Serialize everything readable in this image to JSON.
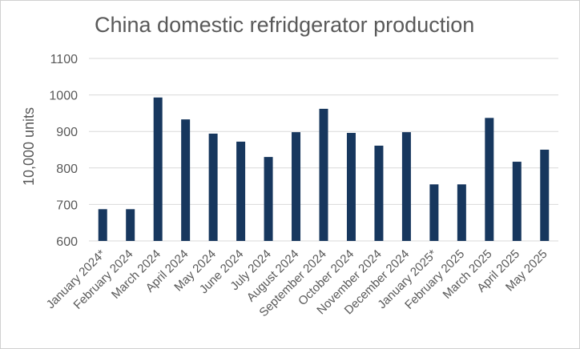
{
  "chart_data": {
    "type": "bar",
    "title": "China domestic refridgerator production",
    "xlabel": "",
    "ylabel": "10,000 units",
    "categories": [
      "January 2024*",
      "February 2024",
      "March 2024",
      "April 2024",
      "May 2024",
      "June 2024",
      "July 2024",
      "August 2024",
      "September 2024",
      "October 2024",
      "November 2024",
      "December 2024",
      "January 2025*",
      "February 2025",
      "March 2025",
      "April 2025",
      "May 2025"
    ],
    "values": [
      687,
      687,
      993,
      933,
      894,
      872,
      830,
      898,
      962,
      896,
      861,
      898,
      755,
      755,
      937,
      817,
      850
    ],
    "ylim": [
      600,
      1100
    ],
    "yticks": [
      600,
      700,
      800,
      900,
      1000,
      1100
    ],
    "grid": true,
    "legend": "none",
    "colors": {
      "bar": "#17375e",
      "grid": "#d9d9d9",
      "text": "#595959"
    }
  }
}
